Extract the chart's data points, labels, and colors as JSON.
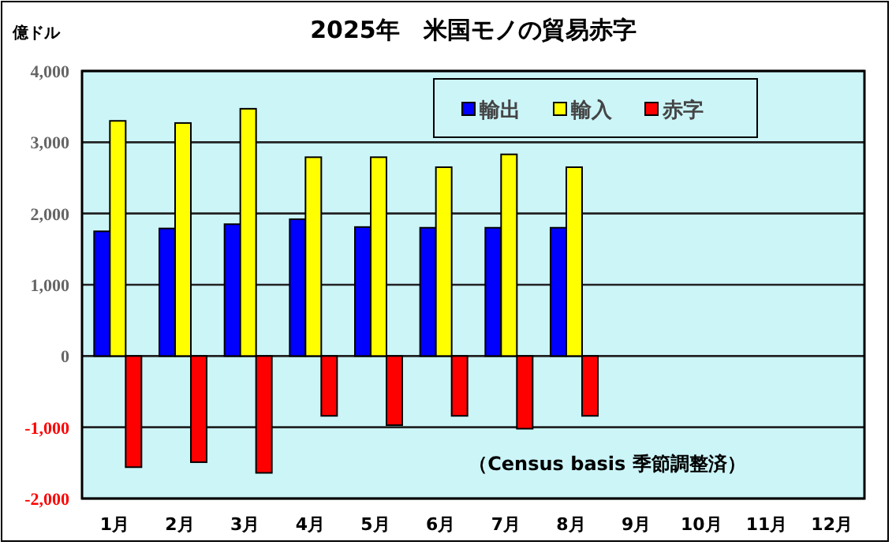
{
  "chart_data": {
    "type": "bar",
    "title": "2025年　米国モノの貿易赤字",
    "ylabel": "億ドル",
    "categories": [
      "1月",
      "2月",
      "3月",
      "4月",
      "5月",
      "6月",
      "7月",
      "8月",
      "9月",
      "10月",
      "11月",
      "12月"
    ],
    "series": [
      {
        "name": "輸出",
        "color": "#0000ff",
        "values": [
          1750,
          1790,
          1850,
          1920,
          1810,
          1800,
          1800,
          1800,
          null,
          null,
          null,
          null
        ]
      },
      {
        "name": "輸入",
        "color": "#ffff00",
        "values": [
          3300,
          3270,
          3470,
          2790,
          2790,
          2650,
          2830,
          2650,
          null,
          null,
          null,
          null
        ]
      },
      {
        "name": "赤字",
        "color": "#ff0000",
        "values": [
          -1560,
          -1490,
          -1640,
          -840,
          -970,
          -840,
          -1020,
          -840,
          null,
          null,
          null,
          null
        ]
      }
    ],
    "ylim": [
      -2000,
      4000
    ],
    "yticks": [
      {
        "value": 4000,
        "label": "4,000"
      },
      {
        "value": 3000,
        "label": "3,000"
      },
      {
        "value": 2000,
        "label": "2,000"
      },
      {
        "value": 1000,
        "label": "1,000"
      },
      0,
      {
        "value": -1000,
        "label": "-1,000"
      },
      {
        "value": -2000,
        "label": "-2,000"
      }
    ],
    "grid": "y",
    "legend": "top",
    "annotations": [
      "（Census basis 季節調整済）"
    ]
  }
}
